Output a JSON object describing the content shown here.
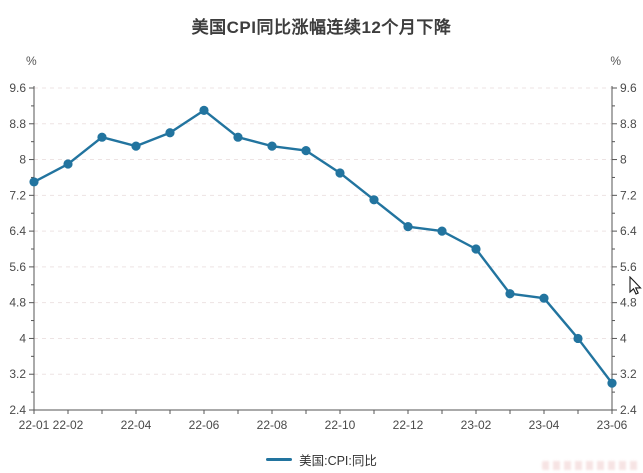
{
  "chart": {
    "title": "美国CPI同比涨幅连续12个月下降",
    "y_unit": "%",
    "legend_label": "美国:CPI:同比",
    "line_color": "#22749f",
    "grid_color": "#ede3e3",
    "axis_color": "#555555"
  },
  "chart_data": {
    "type": "line",
    "title": "美国CPI同比涨幅连续12个月下降",
    "x": [
      "22-01",
      "22-02",
      "22-03",
      "22-04",
      "22-05",
      "22-06",
      "22-07",
      "22-08",
      "22-09",
      "22-10",
      "22-11",
      "22-12",
      "23-01",
      "23-02",
      "23-03",
      "23-04",
      "23-05",
      "23-06"
    ],
    "series": [
      {
        "name": "美国:CPI:同比",
        "values": [
          7.5,
          7.9,
          8.5,
          8.3,
          8.6,
          9.1,
          8.5,
          8.3,
          8.2,
          7.7,
          7.1,
          6.5,
          6.4,
          6.0,
          5.0,
          4.9,
          4.0,
          3.0
        ],
        "color": "#22749f"
      }
    ],
    "x_axis_shown_labels": [
      "22-01",
      "22-02",
      "22-04",
      "22-06",
      "22-08",
      "22-10",
      "22-12",
      "23-02",
      "23-04",
      "23-06"
    ],
    "y_ticks": [
      2.4,
      3.2,
      4,
      4.8,
      5.6,
      6.4,
      7.2,
      8,
      8.8,
      9.6
    ],
    "ylim": [
      2.4,
      9.6
    ],
    "y_minor_step": 0.4,
    "y_unit_left": "%",
    "y_unit_right": "%",
    "grid": "horizontal-dashed",
    "legend_entries": [
      "美国:CPI:同比"
    ],
    "legend_position": "bottom-center",
    "marker": "circle"
  }
}
